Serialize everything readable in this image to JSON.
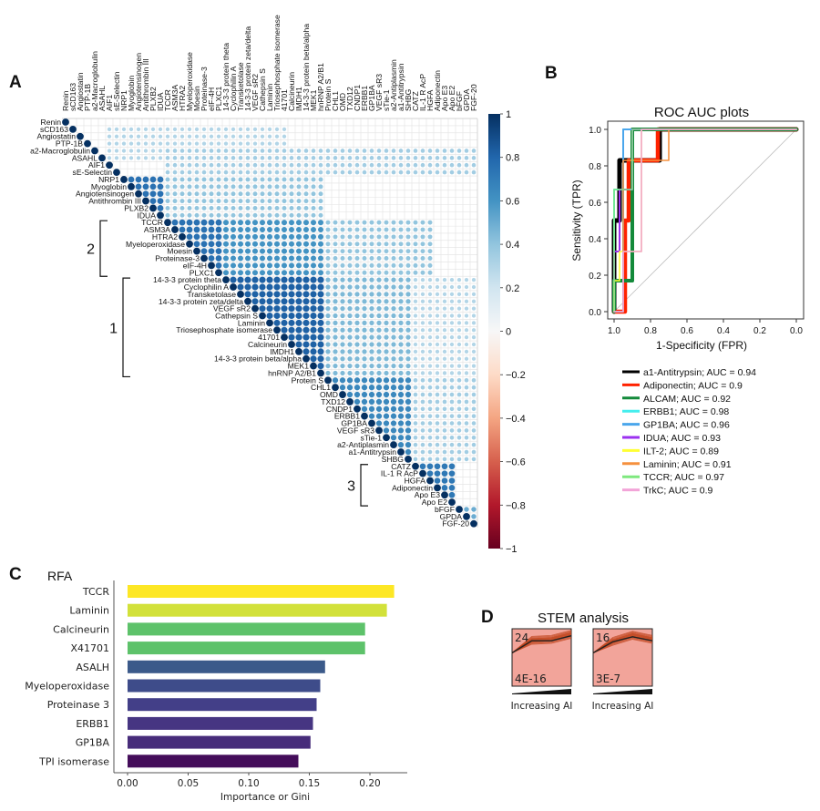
{
  "panels": {
    "a": "A",
    "b": "B",
    "c": "C",
    "d": "D"
  },
  "chart_data": [
    {
      "type": "heatmap",
      "panel": "A",
      "variables": [
        "Renin",
        "sCD163",
        "Angiostatin",
        "PTP-1B",
        "a2-Macroglobulin",
        "ASAHL",
        "AIF1",
        "sE-Selectin",
        "NRP1",
        "Myoglobin",
        "Angiotensinogen",
        "Antithrombin III",
        "PLXB2",
        "IDUA",
        "TCCR",
        "ASM3A",
        "HTRA2",
        "Myeloperoxidase",
        "Moesin",
        "Proteinase-3",
        "eIF-4H",
        "PLXC1",
        "14-3-3 protein theta",
        "Cyclophilin A",
        "Transketolase",
        "14-3-3 protein zeta/delta",
        "VEGF sR2",
        "Cathepsin S",
        "Laminin",
        "Triosephosphate isomerase",
        "41701",
        "Calcineurin",
        "IMDH1",
        "14-3-3 protein beta/alpha",
        "MEK1",
        "hnRNP A2/B1",
        "Protein S",
        "CHL1",
        "OMD",
        "TXD12",
        "CNDP1",
        "ERBB1",
        "GP1BA",
        "VEGF sR3",
        "sTie-1",
        "a2-Antiplasmin",
        "a1-Antitrypsin",
        "SHBG",
        "CATZ",
        "IL-1 R AcP",
        "HGFA",
        "Adiponectin",
        "Apo E3",
        "Apo E2",
        "bFGF",
        "GPDA",
        "FGF-20"
      ],
      "triangle": "upper",
      "diagonal": 1,
      "approx_correlation_blocks": [
        {
          "rows": [
            1,
            5
          ],
          "cols": [
            6,
            30
          ],
          "r": 0.3
        },
        {
          "rows": [
            4,
            7
          ],
          "cols": [
            14,
            56
          ],
          "r": 0.35
        },
        {
          "rows": [
            8,
            13
          ],
          "cols": [
            8,
            13
          ],
          "r": 0.75
        },
        {
          "rows": [
            8,
            13
          ],
          "cols": [
            14,
            35
          ],
          "r": 0.4
        },
        {
          "rows": [
            14,
            21
          ],
          "cols": [
            14,
            21
          ],
          "r": 0.75
        },
        {
          "rows": [
            14,
            21
          ],
          "cols": [
            22,
            35
          ],
          "r": 0.6
        },
        {
          "rows": [
            14,
            21
          ],
          "cols": [
            36,
            50
          ],
          "r": 0.4
        },
        {
          "rows": [
            22,
            35
          ],
          "cols": [
            22,
            35
          ],
          "r": 0.82
        },
        {
          "rows": [
            22,
            35
          ],
          "cols": [
            36,
            47
          ],
          "r": 0.45
        },
        {
          "rows": [
            22,
            35
          ],
          "cols": [
            48,
            56
          ],
          "r": 0.3
        },
        {
          "rows": [
            36,
            47
          ],
          "cols": [
            36,
            47
          ],
          "r": 0.65
        },
        {
          "rows": [
            36,
            47
          ],
          "cols": [
            48,
            56
          ],
          "r": 0.35
        },
        {
          "rows": [
            48,
            53
          ],
          "cols": [
            48,
            53
          ],
          "r": 0.72
        },
        {
          "rows": [
            54,
            56
          ],
          "cols": [
            54,
            56
          ],
          "r": 0.5
        }
      ],
      "clusters": [
        {
          "label": "2",
          "from": "TCCR",
          "to": "PLXC1"
        },
        {
          "label": "1",
          "from": "14-3-3 protein theta",
          "to": "hnRNP A2/B1"
        },
        {
          "label": "3",
          "from": "CATZ",
          "to": "Apo E2"
        }
      ],
      "colorbar": {
        "range": [
          -1,
          1
        ],
        "ticks": [
          "1",
          "0.8",
          "0.6",
          "0.4",
          "0.2",
          "0",
          "−0.2",
          "−0.4",
          "−0.6",
          "−0.8",
          "−1"
        ],
        "colors": {
          "pos": "#053061",
          "mid": "#f7f7f7",
          "neg": "#67001f"
        }
      }
    },
    {
      "type": "line",
      "panel": "B",
      "title": "ROC AUC plots",
      "xlabel": "1-Specificity (FPR)",
      "ylabel": "Sensitivity (TPR)",
      "xlim": [
        1.0,
        0.0
      ],
      "ylim": [
        0.0,
        1.0
      ],
      "xticks": [
        "1.0",
        "0.8",
        "0.6",
        "0.4",
        "0.2",
        "0.0"
      ],
      "yticks": [
        "0.0",
        "0.2",
        "0.4",
        "0.6",
        "0.8",
        "1.0"
      ],
      "legend_position": "below",
      "series": [
        {
          "name": "a1-Antitrypsin; AUC = 0.94",
          "color": "#000000",
          "points": [
            [
              1,
              0
            ],
            [
              1,
              0.5
            ],
            [
              0.97,
              0.5
            ],
            [
              0.97,
              0.83
            ],
            [
              0.75,
              0.83
            ],
            [
              0.75,
              1
            ],
            [
              0,
              1
            ]
          ]
        },
        {
          "name": "Adiponectin; AUC = 0.9",
          "color": "#ff2200",
          "points": [
            [
              1,
              0
            ],
            [
              0.94,
              0
            ],
            [
              0.94,
              0.5
            ],
            [
              0.92,
              0.5
            ],
            [
              0.92,
              0.83
            ],
            [
              0.76,
              0.83
            ],
            [
              0.76,
              1
            ],
            [
              0,
              1
            ]
          ]
        },
        {
          "name": "ALCAM; AUC = 0.92",
          "color": "#138a3a",
          "points": [
            [
              1,
              0
            ],
            [
              1,
              0.17
            ],
            [
              0.9,
              0.17
            ],
            [
              0.9,
              1
            ],
            [
              0,
              1
            ]
          ]
        },
        {
          "name": "ERBB1; AUC = 0.98",
          "color": "#44eeee",
          "points": [
            [
              1,
              0
            ],
            [
              1,
              0.67
            ],
            [
              0.95,
              0.67
            ],
            [
              0.95,
              1
            ],
            [
              0,
              1
            ]
          ]
        },
        {
          "name": "GP1BA; AUC =  0.96",
          "color": "#4aa6ec",
          "points": [
            [
              1,
              0
            ],
            [
              0.95,
              0
            ],
            [
              0.95,
              1
            ],
            [
              0,
              1
            ]
          ]
        },
        {
          "name": "IDUA; AUC = 0.93",
          "color": "#9b30f0",
          "points": [
            [
              1,
              0
            ],
            [
              1,
              0.33
            ],
            [
              0.97,
              0.33
            ],
            [
              0.97,
              0.67
            ],
            [
              0.9,
              0.67
            ],
            [
              0.9,
              1
            ],
            [
              0,
              1
            ]
          ]
        },
        {
          "name": "ILT-2; AUC = 0.89",
          "color": "#ffff33",
          "points": [
            [
              1,
              0
            ],
            [
              1,
              0.17
            ],
            [
              0.97,
              0.17
            ],
            [
              0.97,
              0.33
            ],
            [
              0.85,
              0.33
            ],
            [
              0.85,
              0.67
            ],
            [
              0.85,
              1
            ],
            [
              0,
              1
            ]
          ]
        },
        {
          "name": "Laminin; AUC = 0.91",
          "color": "#f5903e",
          "points": [
            [
              1,
              0
            ],
            [
              0.95,
              0
            ],
            [
              0.95,
              0.83
            ],
            [
              0.7,
              0.83
            ],
            [
              0.7,
              1
            ],
            [
              0,
              1
            ]
          ]
        },
        {
          "name": "TCCR; AUC = 0.97",
          "color": "#7ee87e",
          "points": [
            [
              1,
              0
            ],
            [
              1,
              0.67
            ],
            [
              0.9,
              0.67
            ],
            [
              0.9,
              1
            ],
            [
              0,
              1
            ]
          ]
        },
        {
          "name": "TrkC; AUC = 0.9",
          "color": "#f2a4d8",
          "points": [
            [
              1,
              0
            ],
            [
              0.95,
              0
            ],
            [
              0.95,
              0.33
            ],
            [
              0.85,
              0.33
            ],
            [
              0.85,
              1
            ],
            [
              0,
              1
            ]
          ]
        }
      ]
    },
    {
      "type": "bar",
      "panel": "C",
      "title": "RFA",
      "orientation": "horizontal",
      "categories": [
        "TCCR",
        "Laminin",
        "Calcineurin",
        "X41701",
        "ASALH",
        "Myeloperoxidase",
        "Proteinase 3",
        "ERBB1",
        "GP1BA",
        "TPI isomerase"
      ],
      "values": [
        0.22,
        0.214,
        0.196,
        0.196,
        0.163,
        0.159,
        0.156,
        0.153,
        0.151,
        0.141
      ],
      "colors": [
        "#fde725",
        "#d2e13a",
        "#5dc26a",
        "#5dc26a",
        "#3b5a8a",
        "#3e4c8a",
        "#433f88",
        "#463582",
        "#472c7a",
        "#440d5a"
      ],
      "xlabel": "Importance or Gini",
      "xlim": [
        0,
        0.22
      ],
      "xticks": [
        "0.00",
        "0.05",
        "0.10",
        "0.15",
        "0.20"
      ]
    },
    {
      "type": "line",
      "panel": "D",
      "title": "STEM analysis",
      "profiles": [
        {
          "count": "24",
          "pvalue": "4E-16",
          "xlabel": "Increasing AI",
          "model": [
            0,
            0.6,
            0.6,
            0.85
          ]
        },
        {
          "count": "16",
          "pvalue": "3E-7",
          "xlabel": "Increasing AI",
          "model": [
            0,
            0.55,
            0.8,
            0.6
          ]
        }
      ],
      "box_color": "#f2a49a",
      "line_color": "#c0451d"
    }
  ]
}
